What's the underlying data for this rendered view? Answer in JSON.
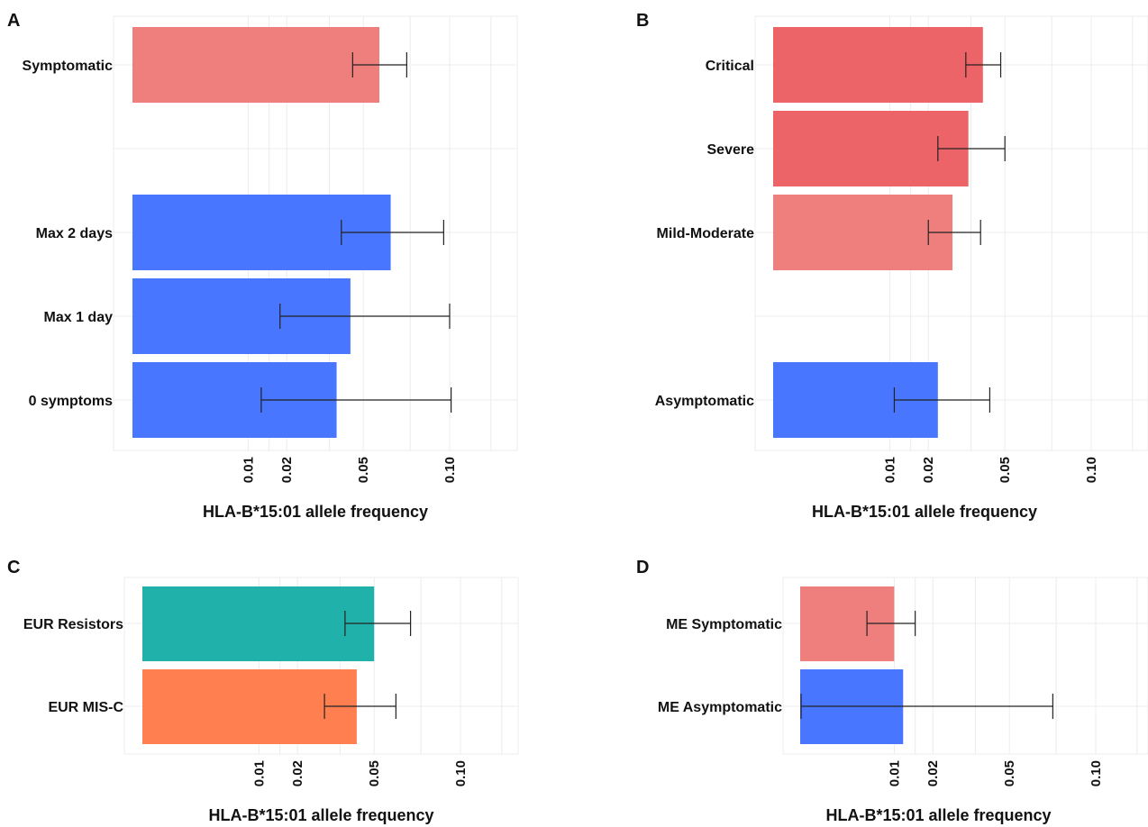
{
  "x_axis": {
    "label": "HLA-B*15:01 allele frequency",
    "ticks": [
      {
        "value": 0.01,
        "label": "0.01"
      },
      {
        "value": 0.02,
        "label": "0.02"
      },
      {
        "value": 0.05,
        "label": "0.05"
      },
      {
        "value": 0.1,
        "label": "0.10"
      }
    ],
    "scale": "sqrt",
    "xlim": [
      0,
      0.2
    ]
  },
  "colors": {
    "red_light": "#EF7F7C",
    "red_dark": "#EC6368",
    "blue": "#4876FF",
    "teal": "#20B2AA",
    "coral": "#FF7F50",
    "grid": "#ECECEC",
    "error_bar": "#222222"
  },
  "chart_data": [
    {
      "panel": "A",
      "type": "bar",
      "orientation": "horizontal",
      "xlabel": "HLA-B*15:01 allele frequency",
      "bars": [
        {
          "label": "Symptomatic",
          "value": 0.058,
          "lo": 0.045,
          "hi": 0.073,
          "color": "red_light"
        },
        {
          "label": "Max 2 days",
          "value": 0.064,
          "lo": 0.04,
          "hi": 0.096,
          "color": "blue"
        },
        {
          "label": "Max 1 day",
          "value": 0.044,
          "lo": 0.018,
          "hi": 0.1,
          "color": "blue"
        },
        {
          "label": "0 symptoms",
          "value": 0.038,
          "lo": 0.013,
          "hi": 0.101,
          "color": "blue"
        }
      ]
    },
    {
      "panel": "B",
      "type": "bar",
      "orientation": "horizontal",
      "xlabel": "HLA-B*15:01 allele frequency",
      "bars": [
        {
          "label": "Critical",
          "value": 0.04,
          "lo": 0.033,
          "hi": 0.048,
          "color": "red_dark"
        },
        {
          "label": "Severe",
          "value": 0.034,
          "lo": 0.023,
          "hi": 0.05,
          "color": "red_dark"
        },
        {
          "label": "Mild-Moderate",
          "value": 0.028,
          "lo": 0.02,
          "hi": 0.039,
          "color": "red_light"
        },
        {
          "label": "Asymptomatic",
          "value": 0.023,
          "lo": 0.011,
          "hi": 0.043,
          "color": "blue"
        }
      ]
    },
    {
      "panel": "C",
      "type": "bar",
      "orientation": "horizontal",
      "xlabel": "HLA-B*15:01 allele frequency",
      "bars": [
        {
          "label": "EUR Resistors",
          "value": 0.05,
          "lo": 0.037,
          "hi": 0.069,
          "color": "teal"
        },
        {
          "label": "EUR MIS-C",
          "value": 0.042,
          "lo": 0.029,
          "hi": 0.061,
          "color": "coral"
        }
      ]
    },
    {
      "panel": "D",
      "type": "bar",
      "orientation": "horizontal",
      "xlabel": "HLA-B*15:01 allele frequency",
      "bars": [
        {
          "label": "ME Symptomatic",
          "value": 0.01,
          "lo": 0.005,
          "hi": 0.015,
          "color": "red_light"
        },
        {
          "label": "ME Asymptomatic",
          "value": 0.012,
          "lo": 0.0,
          "hi": 0.073,
          "color": "blue"
        }
      ]
    }
  ]
}
